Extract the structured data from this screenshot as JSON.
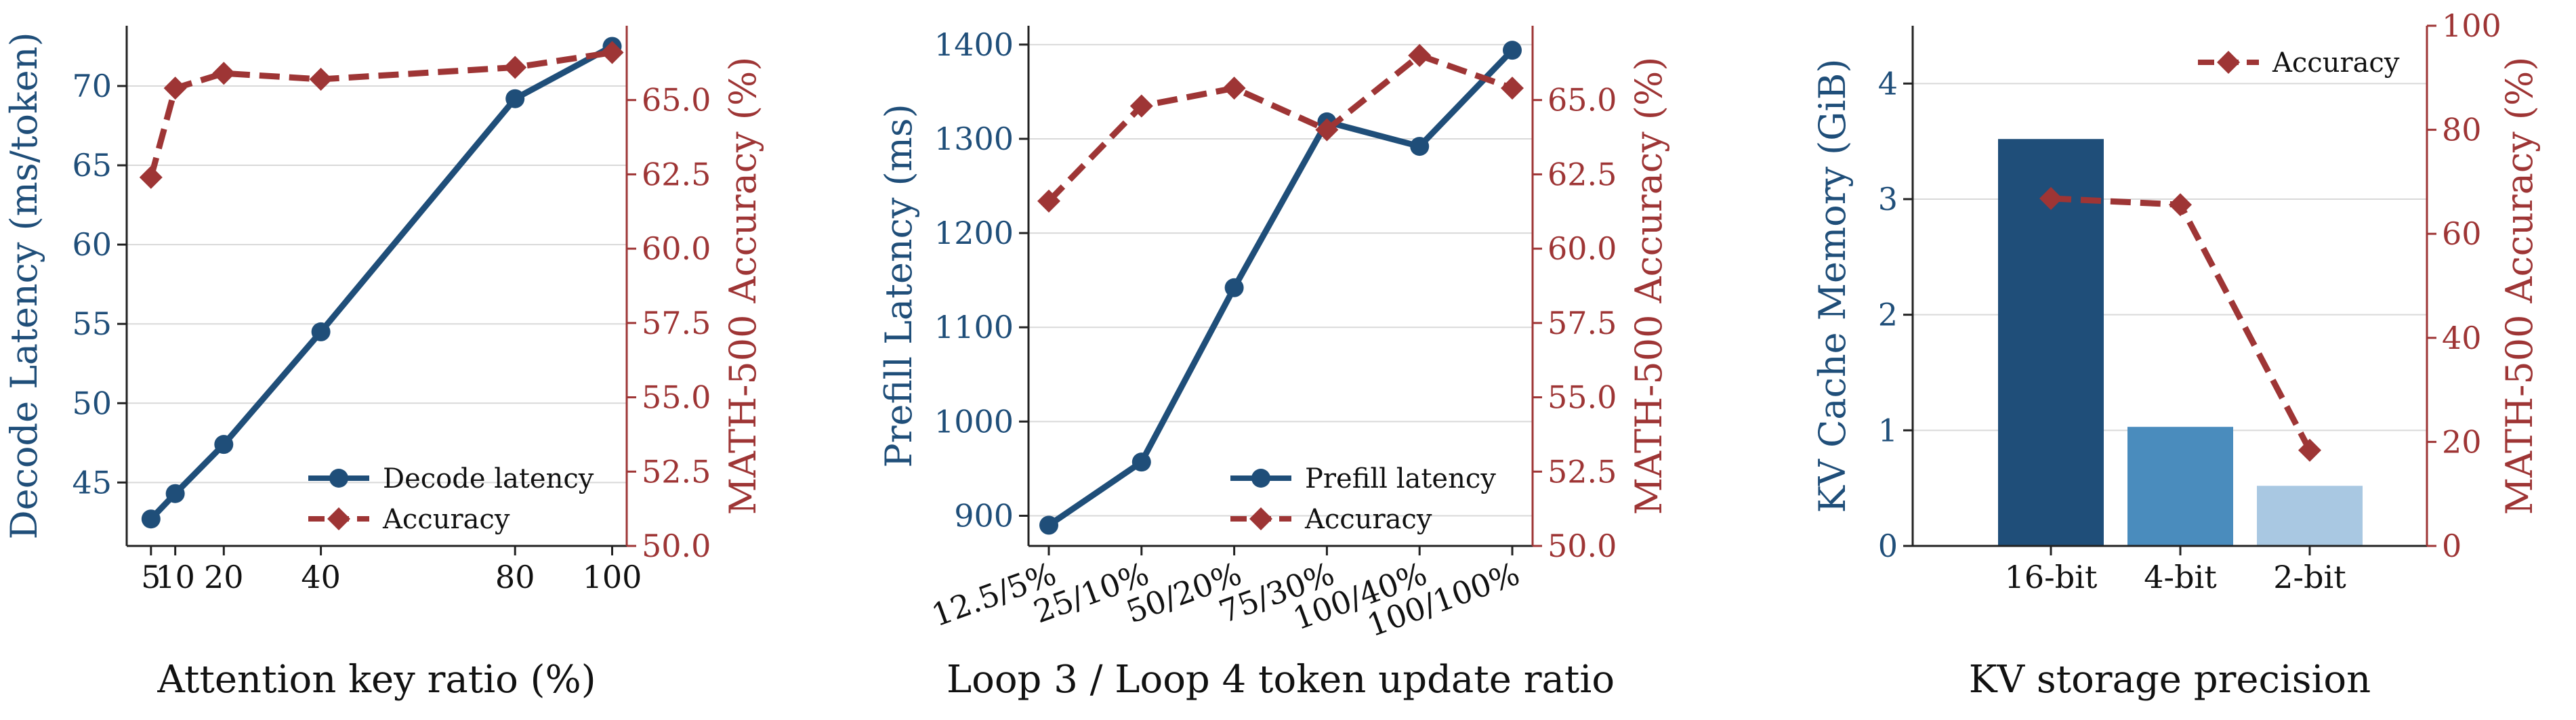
{
  "colors": {
    "blue": "#1f4e79",
    "red": "#9e3535",
    "grid": "#d9d9d9",
    "bar_16bit": "#1f4e79",
    "bar_4bit": "#4a8cbd",
    "bar_2bit": "#a9c8e2"
  },
  "chart_data": [
    {
      "type": "line",
      "xlabel": "Attention key ratio (%)",
      "ylabel_left": "Decode Latency (ms/token)",
      "ylabel_right": "MATH-500 Accuracy (%)",
      "x": [
        5,
        10,
        20,
        40,
        80,
        100
      ],
      "x_tick_labels": [
        "5",
        "10",
        "20",
        "40",
        "80",
        "100"
      ],
      "xlim": [
        0,
        103
      ],
      "ylim_left": [
        41,
        73.8
      ],
      "ylim_right": [
        50.0,
        67.5
      ],
      "y_ticks_left": [
        "45",
        "50",
        "55",
        "60",
        "65",
        "70"
      ],
      "y_ticks_right": [
        "50.0",
        "52.5",
        "55.0",
        "57.5",
        "60.0",
        "62.5",
        "65.0"
      ],
      "grid": true,
      "legend_position": "lower-right",
      "series": [
        {
          "name": "Decode latency",
          "axis": "left",
          "marker": "circle",
          "style": "solid",
          "values": [
            42.7,
            44.3,
            47.4,
            54.5,
            69.2,
            72.5
          ]
        },
        {
          "name": "Accuracy",
          "axis": "right",
          "marker": "diamond",
          "style": "dashed",
          "values": [
            62.4,
            65.4,
            65.9,
            65.7,
            66.1,
            66.6
          ]
        }
      ]
    },
    {
      "type": "line",
      "xlabel": "Loop 3 / Loop 4 token update ratio",
      "ylabel_left": "Prefill Latency (ms)",
      "ylabel_right": "MATH-500 Accuracy (%)",
      "categories": [
        "12.5/5%",
        "25/10%",
        "50/20%",
        "75/30%",
        "100/40%",
        "100/100%"
      ],
      "ylim_left": [
        868,
        1420
      ],
      "ylim_right": [
        50.0,
        67.5
      ],
      "y_ticks_left": [
        "900",
        "1000",
        "1100",
        "1200",
        "1300",
        "1400"
      ],
      "y_ticks_right": [
        "50.0",
        "52.5",
        "55.0",
        "57.5",
        "60.0",
        "62.5",
        "65.0"
      ],
      "grid": true,
      "legend_position": "lower-right",
      "series": [
        {
          "name": "Prefill latency",
          "axis": "left",
          "marker": "circle",
          "style": "solid",
          "values": [
            890,
            957,
            1142,
            1318,
            1292,
            1394
          ]
        },
        {
          "name": "Accuracy",
          "axis": "right",
          "marker": "diamond",
          "style": "dashed",
          "values": [
            61.6,
            64.8,
            65.4,
            64.0,
            66.5,
            65.4
          ]
        }
      ]
    },
    {
      "type": "bar",
      "xlabel": "KV storage precision",
      "ylabel_left": "KV Cache Memory (GiB)",
      "ylabel_right": "MATH-500 Accuracy (%)",
      "categories": [
        "16-bit",
        "4-bit",
        "2-bit"
      ],
      "ylim_left": [
        0,
        4.5
      ],
      "ylim_right": [
        0,
        100
      ],
      "y_ticks_left": [
        "0",
        "1",
        "2",
        "3",
        "4"
      ],
      "y_ticks_right": [
        "0",
        "20",
        "40",
        "60",
        "80",
        "100"
      ],
      "grid": true,
      "legend_position": "top-right",
      "bars": {
        "axis": "left",
        "values": [
          3.52,
          1.03,
          0.52
        ]
      },
      "series": [
        {
          "name": "Accuracy",
          "axis": "right",
          "marker": "diamond",
          "style": "dashed",
          "values": [
            66.8,
            65.6,
            18.4
          ]
        }
      ]
    }
  ]
}
